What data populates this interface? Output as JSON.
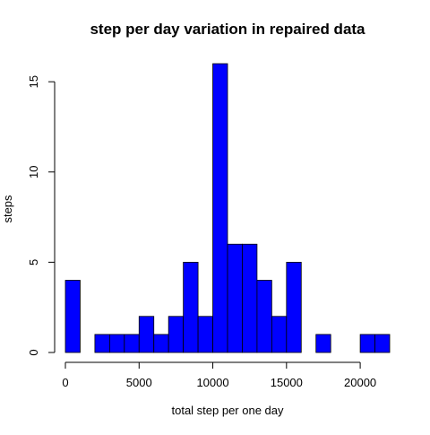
{
  "chart_data": {
    "type": "bar",
    "title": "step per day variation in repaired data",
    "xlabel": "total step per one day",
    "ylabel": "steps",
    "bar_color": "#0000ff",
    "bar_border_color": "#000000",
    "bin_width": 1000,
    "bins": [
      {
        "start": 0,
        "end": 1000,
        "count": 4
      },
      {
        "start": 1000,
        "end": 2000,
        "count": 0
      },
      {
        "start": 2000,
        "end": 3000,
        "count": 1
      },
      {
        "start": 3000,
        "end": 4000,
        "count": 1
      },
      {
        "start": 4000,
        "end": 5000,
        "count": 1
      },
      {
        "start": 5000,
        "end": 6000,
        "count": 2
      },
      {
        "start": 6000,
        "end": 7000,
        "count": 1
      },
      {
        "start": 7000,
        "end": 8000,
        "count": 2
      },
      {
        "start": 8000,
        "end": 9000,
        "count": 5
      },
      {
        "start": 9000,
        "end": 10000,
        "count": 2
      },
      {
        "start": 10000,
        "end": 11000,
        "count": 16
      },
      {
        "start": 11000,
        "end": 12000,
        "count": 6
      },
      {
        "start": 12000,
        "end": 13000,
        "count": 6
      },
      {
        "start": 13000,
        "end": 14000,
        "count": 4
      },
      {
        "start": 14000,
        "end": 15000,
        "count": 2
      },
      {
        "start": 15000,
        "end": 16000,
        "count": 5
      },
      {
        "start": 16000,
        "end": 17000,
        "count": 0
      },
      {
        "start": 17000,
        "end": 18000,
        "count": 1
      },
      {
        "start": 18000,
        "end": 19000,
        "count": 0
      },
      {
        "start": 19000,
        "end": 20000,
        "count": 0
      },
      {
        "start": 20000,
        "end": 21000,
        "count": 1
      },
      {
        "start": 21000,
        "end": 22000,
        "count": 1
      }
    ],
    "xlim": [
      0,
      22000
    ],
    "ylim": [
      0,
      16
    ],
    "x_ticks": [
      0,
      5000,
      10000,
      15000,
      20000
    ],
    "y_ticks": [
      0,
      5,
      10,
      15
    ],
    "grid": false,
    "legend": "none"
  }
}
